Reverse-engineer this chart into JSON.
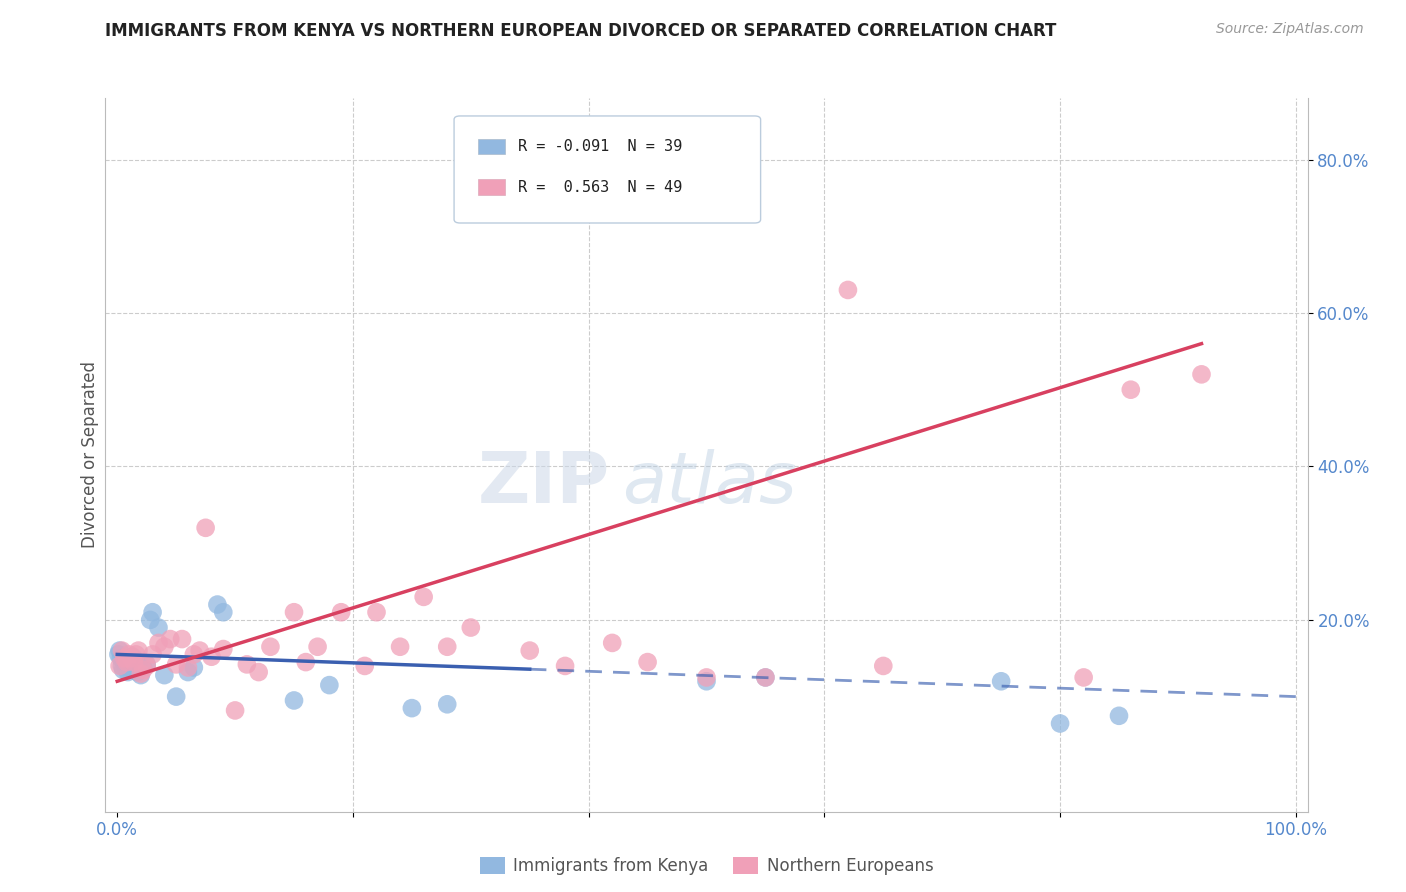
{
  "title": "IMMIGRANTS FROM KENYA VS NORTHERN EUROPEAN DIVORCED OR SEPARATED CORRELATION CHART",
  "source": "Source: ZipAtlas.com",
  "ylabel": "Divorced or Separated",
  "xlim": [
    -0.01,
    1.01
  ],
  "ylim": [
    -0.05,
    0.88
  ],
  "background_color": "#ffffff",
  "grid_color": "#cccccc",
  "kenya_color": "#92b8e0",
  "northern_eu_color": "#f0a0b8",
  "kenya_trend_color": "#3a5fb0",
  "northern_eu_trend_color": "#d84060",
  "kenya_points": [
    [
      0.001,
      0.155
    ],
    [
      0.002,
      0.16
    ],
    [
      0.003,
      0.15
    ],
    [
      0.004,
      0.14
    ],
    [
      0.005,
      0.135
    ],
    [
      0.006,
      0.145
    ],
    [
      0.007,
      0.14
    ],
    [
      0.008,
      0.138
    ],
    [
      0.009,
      0.132
    ],
    [
      0.01,
      0.145
    ],
    [
      0.011,
      0.142
    ],
    [
      0.012,
      0.138
    ],
    [
      0.013,
      0.152
    ],
    [
      0.014,
      0.142
    ],
    [
      0.015,
      0.148
    ],
    [
      0.016,
      0.138
    ],
    [
      0.017,
      0.132
    ],
    [
      0.018,
      0.142
    ],
    [
      0.02,
      0.128
    ],
    [
      0.022,
      0.138
    ],
    [
      0.025,
      0.142
    ],
    [
      0.028,
      0.2
    ],
    [
      0.03,
      0.21
    ],
    [
      0.035,
      0.19
    ],
    [
      0.04,
      0.128
    ],
    [
      0.05,
      0.1
    ],
    [
      0.06,
      0.132
    ],
    [
      0.065,
      0.138
    ],
    [
      0.085,
      0.22
    ],
    [
      0.09,
      0.21
    ],
    [
      0.15,
      0.095
    ],
    [
      0.18,
      0.115
    ],
    [
      0.25,
      0.085
    ],
    [
      0.28,
      0.09
    ],
    [
      0.5,
      0.12
    ],
    [
      0.55,
      0.125
    ],
    [
      0.75,
      0.12
    ],
    [
      0.8,
      0.065
    ],
    [
      0.85,
      0.075
    ]
  ],
  "northern_eu_points": [
    [
      0.002,
      0.14
    ],
    [
      0.004,
      0.16
    ],
    [
      0.006,
      0.15
    ],
    [
      0.008,
      0.145
    ],
    [
      0.01,
      0.155
    ],
    [
      0.012,
      0.15
    ],
    [
      0.014,
      0.145
    ],
    [
      0.016,
      0.155
    ],
    [
      0.018,
      0.16
    ],
    [
      0.02,
      0.13
    ],
    [
      0.022,
      0.135
    ],
    [
      0.025,
      0.14
    ],
    [
      0.03,
      0.155
    ],
    [
      0.035,
      0.17
    ],
    [
      0.04,
      0.165
    ],
    [
      0.045,
      0.175
    ],
    [
      0.05,
      0.142
    ],
    [
      0.055,
      0.175
    ],
    [
      0.06,
      0.138
    ],
    [
      0.065,
      0.155
    ],
    [
      0.07,
      0.16
    ],
    [
      0.075,
      0.32
    ],
    [
      0.08,
      0.152
    ],
    [
      0.09,
      0.162
    ],
    [
      0.1,
      0.082
    ],
    [
      0.11,
      0.142
    ],
    [
      0.12,
      0.132
    ],
    [
      0.13,
      0.165
    ],
    [
      0.15,
      0.21
    ],
    [
      0.16,
      0.145
    ],
    [
      0.17,
      0.165
    ],
    [
      0.19,
      0.21
    ],
    [
      0.21,
      0.14
    ],
    [
      0.22,
      0.21
    ],
    [
      0.24,
      0.165
    ],
    [
      0.26,
      0.23
    ],
    [
      0.28,
      0.165
    ],
    [
      0.3,
      0.19
    ],
    [
      0.35,
      0.16
    ],
    [
      0.38,
      0.14
    ],
    [
      0.42,
      0.17
    ],
    [
      0.45,
      0.145
    ],
    [
      0.5,
      0.125
    ],
    [
      0.55,
      0.125
    ],
    [
      0.62,
      0.63
    ],
    [
      0.65,
      0.14
    ],
    [
      0.82,
      0.125
    ],
    [
      0.86,
      0.5
    ],
    [
      0.92,
      0.52
    ]
  ],
  "kenya_trend_x0": 0.0,
  "kenya_trend_y0": 0.155,
  "kenya_trend_solid_x1": 0.35,
  "kenya_trend_x1": 1.0,
  "kenya_trend_y1": 0.1,
  "northern_eu_trend_x0": 0.0,
  "northern_eu_trend_y0": 0.12,
  "northern_eu_trend_x1": 0.92,
  "northern_eu_trend_y1": 0.56,
  "legend_kenya_label": "R = -0.091  N = 39",
  "legend_neu_label": "R =  0.563  N = 49",
  "watermark_zip": "ZIP",
  "watermark_atlas": "atlas"
}
